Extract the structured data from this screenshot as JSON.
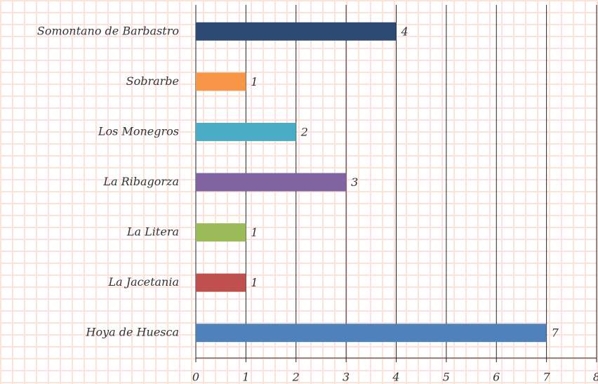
{
  "chart_data": {
    "type": "bar",
    "orientation": "horizontal",
    "categories": [
      "Somontano de Barbastro",
      "Sobrarbe",
      "Los Monegros",
      "La Ribagorza",
      "La Litera",
      "La Jacetania",
      "Hoya de Huesca"
    ],
    "values": [
      4,
      1,
      2,
      3,
      1,
      1,
      7
    ],
    "colors": [
      "#2c4a72",
      "#f79646",
      "#4bacc6",
      "#8064a2",
      "#9bbb59",
      "#c0504d",
      "#4f81bd"
    ],
    "xlim": [
      0,
      8
    ],
    "xticks": [
      0,
      1,
      2,
      3,
      4,
      5,
      6,
      7,
      8
    ],
    "grid": true
  }
}
